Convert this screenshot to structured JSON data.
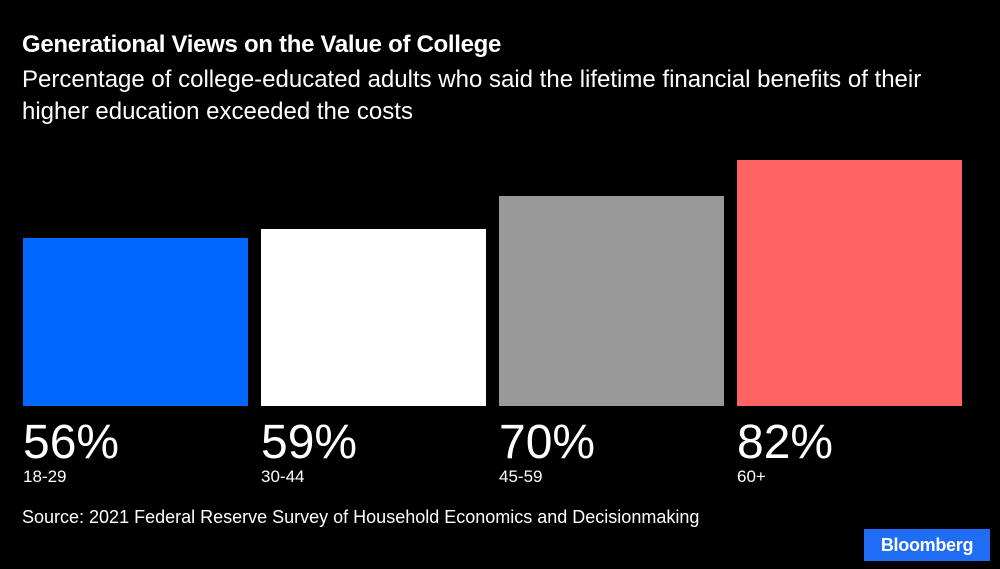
{
  "chart_data": {
    "type": "bar",
    "title": "Generational Views on the Value of College",
    "subtitle": "Percentage of college-educated adults who said the lifetime financial benefits of their higher education exceeded the costs",
    "categories": [
      "18-29",
      "30-44",
      "45-59",
      "60+"
    ],
    "values": [
      56,
      59,
      70,
      82
    ],
    "value_labels": [
      "56%",
      "59%",
      "70%",
      "82%"
    ],
    "colors": [
      "#0068ff",
      "#ffffff",
      "#999999",
      "#ff6361"
    ],
    "ylim": [
      0,
      100
    ],
    "xlabel": "",
    "ylabel": "",
    "grid": false
  },
  "source": "Source: 2021 Federal Reserve Survey of Household Economics and Decisionmaking",
  "brand": "Bloomberg"
}
